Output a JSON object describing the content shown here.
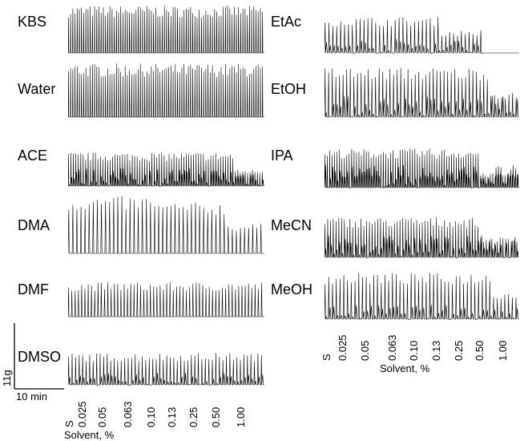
{
  "chart_data": {
    "type": "line",
    "traces": [
      {
        "label": "KBS"
      },
      {
        "label": "Water"
      },
      {
        "label": "ACE"
      },
      {
        "label": "DMA"
      },
      {
        "label": "DMF"
      },
      {
        "label": "DMSO"
      },
      {
        "label": "EtAc"
      },
      {
        "label": "EtOH"
      },
      {
        "label": "IPA"
      },
      {
        "label": "MeCN"
      },
      {
        "label": "MeOH"
      }
    ],
    "x_ticks": [
      "S",
      "0.025",
      "0.05",
      "0.063",
      "0.10",
      "0.13",
      "0.25",
      "0.50",
      "1.00"
    ],
    "xlabel": "Solvent, %",
    "scale_bar": {
      "y_label": "11g",
      "x_label": "10 min"
    }
  }
}
